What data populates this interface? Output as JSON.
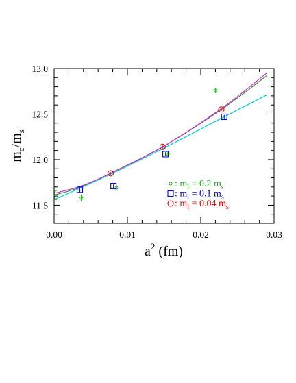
{
  "chart_data": {
    "type": "scatter",
    "xlim": [
      0,
      0.03
    ],
    "ylim": [
      11.3,
      13.0
    ],
    "x_ticks": [
      "0.00",
      "0.01",
      "0.02",
      "0.03"
    ],
    "x_tick_values": [
      0,
      0.01,
      0.02,
      0.03
    ],
    "y_ticks": [
      "11.5",
      "12.0",
      "12.5",
      "13.0"
    ],
    "y_tick_values": [
      11.5,
      12.0,
      12.5,
      13.0
    ],
    "xlabel": {
      "base": "a",
      "sup": "2",
      "unit": " (fm)"
    },
    "ylabel": {
      "m1": "m",
      "sub1": "c",
      "slash": "/",
      "m2": "m",
      "sub2": "s"
    },
    "legend_placement": "bottom-right",
    "grid": false,
    "series": [
      {
        "key": "s02",
        "legend": {
          "prefix": ": m",
          "sub": "l",
          "rest": " = 0.2 m",
          "sub2": "s"
        },
        "color": "#22aa22",
        "marker": "burst",
        "points": [
          {
            "x": 0.0037,
            "y": 11.58,
            "err": 0.04
          },
          {
            "x": 0.0085,
            "y": 11.69,
            "err": 0.03
          },
          {
            "x": 0.0155,
            "y": 12.06,
            "err": 0.02
          },
          {
            "x": 0.022,
            "y": 12.76,
            "err": 0.03
          }
        ]
      },
      {
        "key": "s01",
        "legend": {
          "prefix": ": m",
          "sub": "l",
          "rest": " = 0.1 m",
          "sub2": "s"
        },
        "color": "#0000ee",
        "marker": "square",
        "points": [
          {
            "x": 0.0035,
            "y": 11.67,
            "err": 0.03
          },
          {
            "x": 0.0081,
            "y": 11.71,
            "err": 0.02
          },
          {
            "x": 0.0152,
            "y": 12.06,
            "err": 0.02
          },
          {
            "x": 0.0232,
            "y": 12.47,
            "err": 0.02
          }
        ]
      },
      {
        "key": "s004",
        "legend": {
          "prefix": ": m",
          "sub": "l",
          "rest": " = 0.04 m",
          "sub2": "s"
        },
        "color": "#ee0000",
        "marker": "circle",
        "points": [
          {
            "x": 0.0077,
            "y": 11.85,
            "err": 0.015
          },
          {
            "x": 0.0148,
            "y": 12.14,
            "err": 0.015
          },
          {
            "x": 0.0228,
            "y": 12.55,
            "err": 0.015
          }
        ]
      }
    ],
    "fits": [
      {
        "name": "fit-green",
        "color": "#3a8a3a",
        "x": [
          0,
          0.0037,
          0.0077,
          0.0148,
          0.0228,
          0.029
        ],
        "y": [
          11.61,
          11.7,
          11.85,
          12.14,
          12.55,
          12.92
        ]
      },
      {
        "name": "fit-magenta",
        "color": "#cc33cc",
        "x": [
          0,
          0.0037,
          0.0077,
          0.0148,
          0.0228,
          0.029
        ],
        "y": [
          11.63,
          11.71,
          11.85,
          12.14,
          12.56,
          12.95
        ]
      },
      {
        "name": "fit-cyan",
        "color": "#00cccc",
        "x": [
          0,
          0.0077,
          0.0148,
          0.0232,
          0.029
        ],
        "y": [
          11.56,
          11.84,
          12.12,
          12.47,
          12.71
        ]
      }
    ],
    "intercept_points": [
      {
        "x": 0.0,
        "y": 11.61,
        "err": 0.05,
        "color": "#22aa22"
      }
    ]
  }
}
